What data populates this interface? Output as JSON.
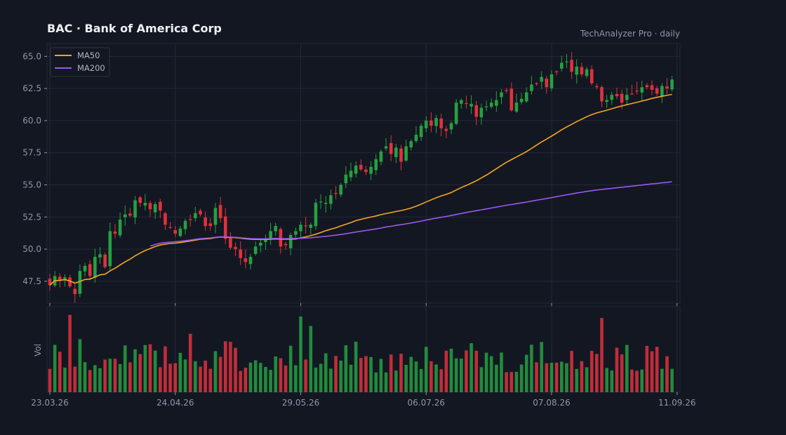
{
  "header": {
    "title": "BAC  ·  Bank of America Corp",
    "subtitle": "TechAnalyzer Pro · daily"
  },
  "chart_data": {
    "type": "candlestick",
    "title": "BAC  ·  Bank of America Corp",
    "subtitle": "TechAnalyzer Pro · daily",
    "y_ticks": [
      47.5,
      50.0,
      52.5,
      55.0,
      57.5,
      60.0,
      62.5,
      65.0
    ],
    "y_tick_labels": [
      "47.5",
      "50.0",
      "52.5",
      "55.0",
      "57.5",
      "60.0",
      "62.5",
      "65.0"
    ],
    "ylim": [
      45.8,
      66.0
    ],
    "x_tick_labels": [
      "23.03.26",
      "24.04.26",
      "29.05.26",
      "06.07.26",
      "07.08.26",
      "11.09.26"
    ],
    "x_tick_index": [
      0,
      25,
      50,
      75,
      100,
      125
    ],
    "volume_axis_label": "Vol",
    "legend": [
      {
        "name": "MA50",
        "color": "#f5a623"
      },
      {
        "name": "MA200",
        "color": "#9b59f0"
      }
    ],
    "up_color": "#26a041",
    "down_color": "#e0313d",
    "close": [
      47.2,
      47.9,
      47.6,
      47.8,
      47.1,
      46.5,
      48.3,
      48.7,
      47.9,
      49.4,
      49.6,
      48.6,
      51.4,
      51.2,
      52.3,
      52.7,
      52.6,
      53.8,
      53.6,
      53.6,
      53.1,
      53.5,
      53.0,
      51.9,
      51.7,
      51.2,
      51.6,
      52.2,
      52.3,
      52.8,
      52.7,
      51.8,
      51.8,
      53.2,
      52.4,
      50.8,
      50.1,
      50.0,
      49.3,
      49.0,
      49.4,
      50.2,
      50.5,
      50.8,
      51.4,
      51.8,
      50.2,
      50.3,
      51.1,
      51.4,
      51.9,
      51.8,
      51.9,
      53.6,
      53.7,
      53.6,
      54.2,
      54.3,
      55.0,
      55.8,
      56.1,
      56.5,
      56.2,
      56.0,
      56.4,
      57.0,
      57.6,
      58.0,
      57.4,
      57.9,
      56.8,
      58.0,
      58.4,
      58.9,
      59.6,
      60.0,
      59.6,
      60.2,
      59.4,
      59.2,
      59.8,
      61.4,
      61.6,
      61.3,
      61.3,
      60.3,
      61.0,
      61.1,
      61.4,
      61.6,
      62.2,
      62.3,
      60.8,
      61.4,
      61.7,
      62.2,
      62.8,
      62.9,
      63.4,
      62.6,
      63.6,
      63.8,
      64.5,
      64.6,
      63.8,
      64.2,
      63.6,
      64.0,
      62.9,
      62.6,
      61.5,
      61.6,
      62.0,
      61.9,
      61.4,
      62.0,
      62.1,
      62.3,
      62.6,
      62.6,
      62.4,
      62.1,
      62.7,
      62.5,
      63.2
    ]
  }
}
